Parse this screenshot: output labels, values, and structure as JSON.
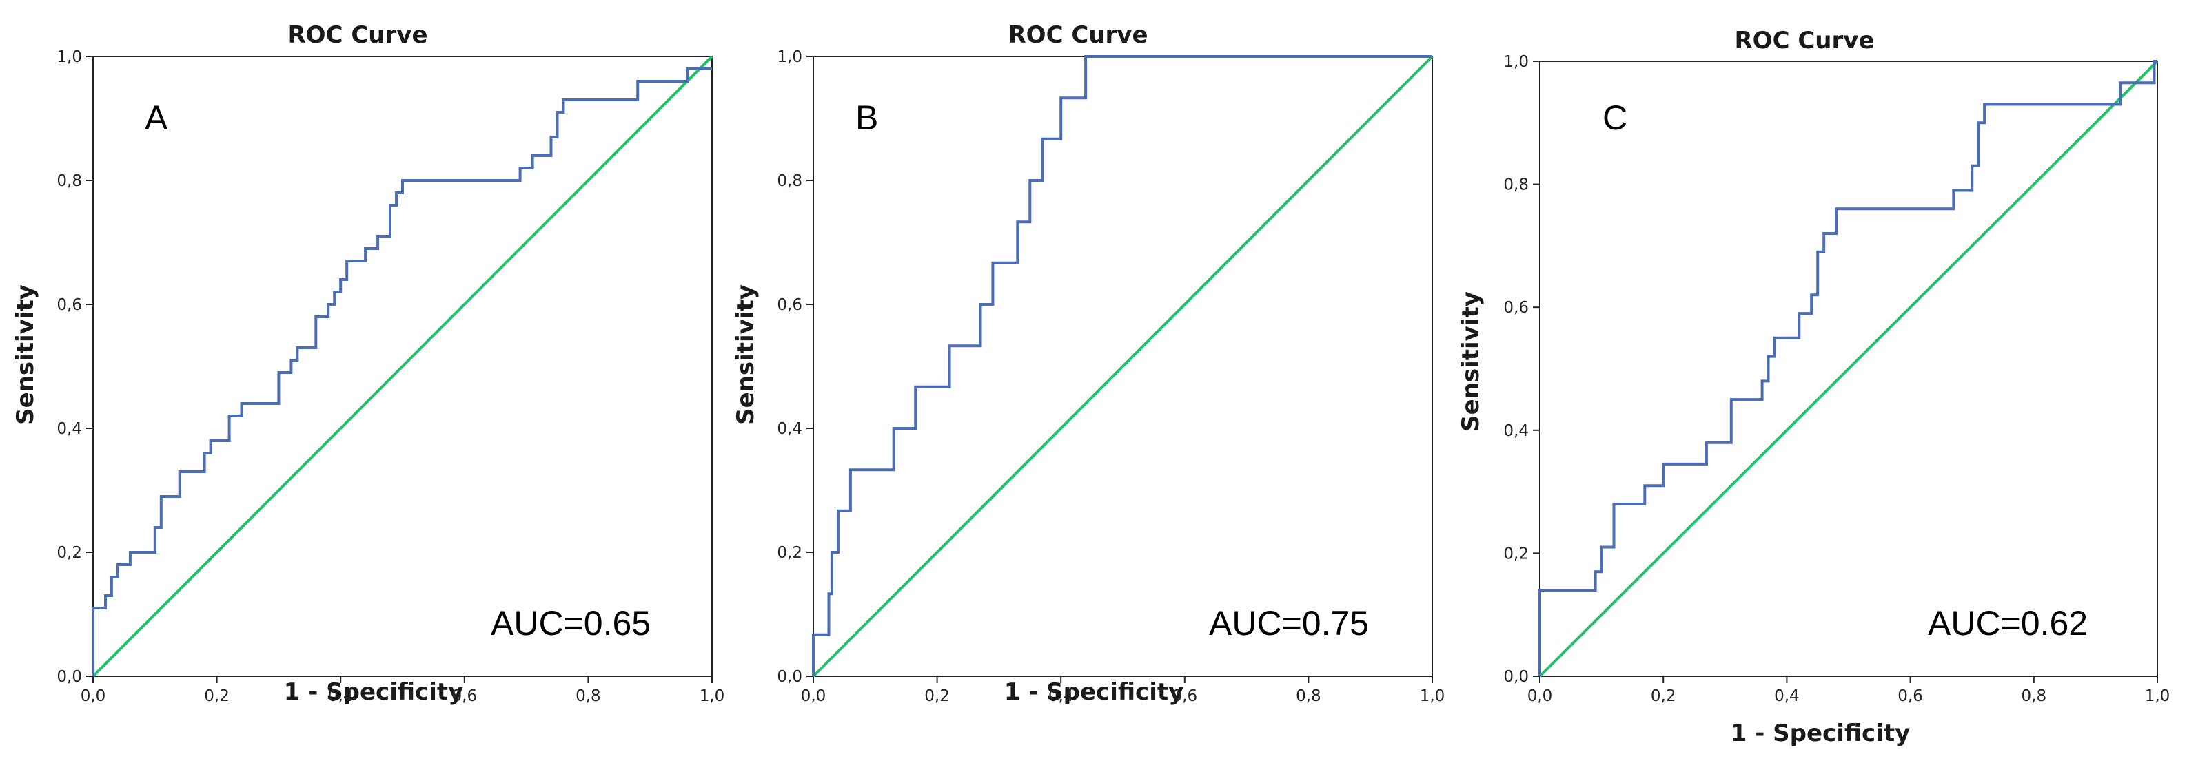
{
  "chart_data": [
    {
      "type": "line",
      "title": "ROC Curve",
      "xlabel": "1 - Specificity",
      "ylabel": "Sensitivity",
      "xlim": [
        0,
        1
      ],
      "ylim": [
        0,
        1
      ],
      "ticks": [
        "0,0",
        "0,2",
        "0,4",
        "0,6",
        "0,8",
        "1,0"
      ],
      "panel_label": "A",
      "auc_label": "AUC=0.65",
      "grid": false,
      "colors": {
        "roc": "#4a6db5",
        "reference": "#1fc26b"
      },
      "series": [
        {
          "x": [
            0,
            0,
            0.02,
            0.02,
            0.03,
            0.03,
            0.04,
            0.04,
            0.06,
            0.06,
            0.1,
            0.1,
            0.11,
            0.11,
            0.14,
            0.14,
            0.18,
            0.18,
            0.19,
            0.19,
            0.22,
            0.22,
            0.24,
            0.24,
            0.3,
            0.3,
            0.32,
            0.32,
            0.33,
            0.33,
            0.36,
            0.36,
            0.38,
            0.38,
            0.39,
            0.39,
            0.4,
            0.4,
            0.41,
            0.41,
            0.44,
            0.44,
            0.46,
            0.46,
            0.48,
            0.48,
            0.49,
            0.49,
            0.5,
            0.5,
            0.69,
            0.69,
            0.71,
            0.71,
            0.74,
            0.74,
            0.75,
            0.75,
            0.76,
            0.76,
            0.88,
            0.88,
            0.96,
            0.96,
            1.0
          ],
          "y": [
            0,
            0.11,
            0.11,
            0.13,
            0.13,
            0.16,
            0.16,
            0.18,
            0.18,
            0.2,
            0.2,
            0.24,
            0.24,
            0.29,
            0.29,
            0.33,
            0.33,
            0.36,
            0.36,
            0.38,
            0.38,
            0.42,
            0.42,
            0.44,
            0.44,
            0.49,
            0.49,
            0.51,
            0.51,
            0.53,
            0.53,
            0.58,
            0.58,
            0.6,
            0.6,
            0.62,
            0.62,
            0.64,
            0.64,
            0.67,
            0.67,
            0.69,
            0.69,
            0.71,
            0.71,
            0.76,
            0.76,
            0.78,
            0.78,
            0.8,
            0.8,
            0.82,
            0.82,
            0.84,
            0.84,
            0.87,
            0.87,
            0.91,
            0.91,
            0.93,
            0.93,
            0.96,
            0.96,
            0.98,
            0.98
          ]
        }
      ]
    },
    {
      "type": "line",
      "title": "ROC Curve",
      "xlabel": "1 - Specificity",
      "ylabel": "Sensitivity",
      "xlim": [
        0,
        1
      ],
      "ylim": [
        0,
        1
      ],
      "ticks": [
        "0,0",
        "0,2",
        "0,4",
        "0,6",
        "0,8",
        "1,0"
      ],
      "panel_label": "B",
      "auc_label": "AUC=0.75",
      "grid": false,
      "colors": {
        "roc": "#4a6db5",
        "reference": "#1fc26b"
      },
      "series": [
        {
          "x": [
            0,
            0,
            0.025,
            0.025,
            0.03,
            0.03,
            0.04,
            0.04,
            0.06,
            0.06,
            0.13,
            0.13,
            0.165,
            0.165,
            0.22,
            0.22,
            0.27,
            0.27,
            0.29,
            0.29,
            0.33,
            0.33,
            0.35,
            0.35,
            0.37,
            0.37,
            0.4,
            0.4,
            0.44,
            0.44,
            0.78,
            0.78,
            1.0
          ],
          "y": [
            0,
            0.067,
            0.067,
            0.133,
            0.133,
            0.2,
            0.2,
            0.267,
            0.267,
            0.333,
            0.333,
            0.4,
            0.4,
            0.467,
            0.467,
            0.533,
            0.533,
            0.6,
            0.6,
            0.667,
            0.667,
            0.733,
            0.733,
            0.8,
            0.8,
            0.867,
            0.867,
            0.933,
            0.933,
            1.0,
            1.0,
            1.0,
            1.0
          ]
        }
      ]
    },
    {
      "type": "line",
      "title": "ROC Curve",
      "xlabel": "1 - Specificity",
      "ylabel": "Sensitivity",
      "xlim": [
        0,
        1
      ],
      "ylim": [
        0,
        1
      ],
      "ticks": [
        "0,0",
        "0,2",
        "0,4",
        "0,6",
        "0,8",
        "1,0"
      ],
      "panel_label": "C",
      "auc_label": "AUC=0.62",
      "grid": false,
      "colors": {
        "roc": "#4a6db5",
        "reference": "#1fc26b"
      },
      "series": [
        {
          "x": [
            0,
            0,
            0.09,
            0.09,
            0.1,
            0.1,
            0.12,
            0.12,
            0.17,
            0.17,
            0.2,
            0.2,
            0.27,
            0.27,
            0.31,
            0.31,
            0.36,
            0.36,
            0.37,
            0.37,
            0.38,
            0.38,
            0.42,
            0.42,
            0.44,
            0.44,
            0.45,
            0.45,
            0.46,
            0.46,
            0.48,
            0.48,
            0.67,
            0.67,
            0.7,
            0.7,
            0.71,
            0.71,
            0.72,
            0.72,
            0.94,
            0.94,
            0.995,
            0.995,
            1.0
          ],
          "y": [
            0,
            0.14,
            0.14,
            0.17,
            0.17,
            0.21,
            0.21,
            0.28,
            0.28,
            0.31,
            0.31,
            0.345,
            0.345,
            0.38,
            0.38,
            0.45,
            0.45,
            0.48,
            0.48,
            0.52,
            0.52,
            0.55,
            0.55,
            0.59,
            0.59,
            0.62,
            0.62,
            0.69,
            0.69,
            0.72,
            0.72,
            0.76,
            0.76,
            0.79,
            0.79,
            0.83,
            0.83,
            0.9,
            0.9,
            0.93,
            0.93,
            0.965,
            0.965,
            1.0,
            1.0
          ]
        }
      ]
    }
  ]
}
